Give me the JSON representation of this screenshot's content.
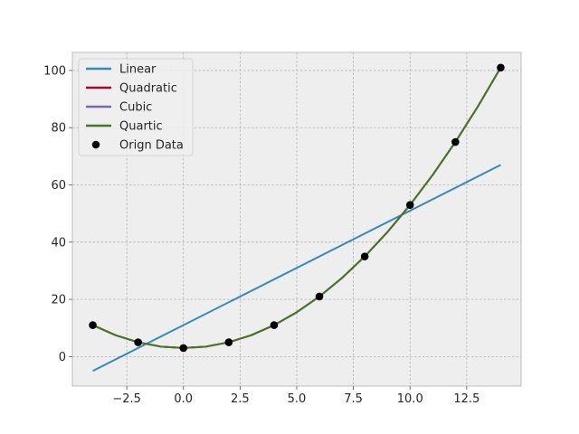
{
  "chart_data": {
    "type": "line",
    "title": "",
    "xlabel": "",
    "ylabel": "",
    "xlim": [
      -4.9,
      14.9
    ],
    "ylim": [
      -10.3,
      106.3
    ],
    "xticks": [
      -2.5,
      0.0,
      2.5,
      5.0,
      7.5,
      10.0,
      12.5
    ],
    "xtick_labels": [
      "−2.5",
      "0.0",
      "2.5",
      "5.0",
      "7.5",
      "10.0",
      "12.5"
    ],
    "yticks": [
      0,
      20,
      40,
      60,
      80,
      100
    ],
    "ytick_labels": [
      "0",
      "20",
      "40",
      "60",
      "80",
      "100"
    ],
    "grid": true,
    "legend_position": "top-left",
    "scatter": {
      "name": "Orign Data",
      "color": "#000000",
      "x": [
        -4,
        -2,
        0,
        2,
        4,
        6,
        8,
        10,
        12,
        14
      ],
      "y": [
        11,
        5,
        3,
        5,
        11,
        21,
        35,
        53,
        75,
        101
      ]
    },
    "series": [
      {
        "name": "Linear",
        "color": "#348ABD",
        "x": [
          -4,
          14
        ],
        "y": [
          -5,
          67
        ]
      },
      {
        "name": "Quadratic",
        "color": "#A60628",
        "x": [
          -4,
          -3,
          -2,
          -1,
          0,
          1,
          2,
          3,
          4,
          5,
          6,
          7,
          8,
          9,
          10,
          11,
          12,
          13,
          14
        ],
        "y": [
          11,
          7.5,
          5,
          3.5,
          3,
          3.5,
          5,
          7.5,
          11,
          15.5,
          21,
          27.5,
          35,
          43.5,
          53,
          63.5,
          75,
          87.5,
          101
        ]
      },
      {
        "name": "Cubic",
        "color": "#7A68A6",
        "x": [
          -4,
          -3,
          -2,
          -1,
          0,
          1,
          2,
          3,
          4,
          5,
          6,
          7,
          8,
          9,
          10,
          11,
          12,
          13,
          14
        ],
        "y": [
          11,
          7.5,
          5,
          3.5,
          3,
          3.5,
          5,
          7.5,
          11,
          15.5,
          21,
          27.5,
          35,
          43.5,
          53,
          63.5,
          75,
          87.5,
          101
        ]
      },
      {
        "name": "Quartic",
        "color": "#467821",
        "x": [
          -4,
          -3,
          -2,
          -1,
          0,
          1,
          2,
          3,
          4,
          5,
          6,
          7,
          8,
          9,
          10,
          11,
          12,
          13,
          14
        ],
        "y": [
          11,
          7.5,
          5,
          3.5,
          3,
          3.5,
          5,
          7.5,
          11,
          15.5,
          21,
          27.5,
          35,
          43.5,
          53,
          63.5,
          75,
          87.5,
          101
        ]
      }
    ],
    "colors": {
      "axes_background": "#EEEEEE",
      "grid": "#B2B2B2",
      "spine": "#BCBCBC"
    }
  }
}
